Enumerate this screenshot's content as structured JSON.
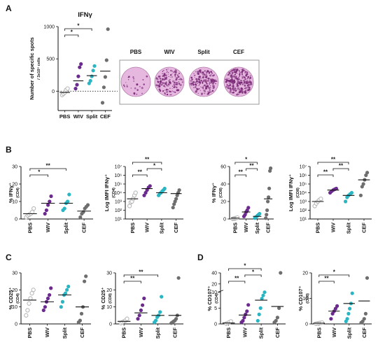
{
  "colors": {
    "PBS": "#b8b8b8",
    "WIV": "#6b2a8e",
    "Split": "#2ab5c3",
    "CEF": "#6e6e6e",
    "well_bg": "#e6b8e0",
    "well_spot": "#7a2a76"
  },
  "panel_labels": [
    "A",
    "B",
    "C",
    "D"
  ],
  "wells": [
    "PBS",
    "WIV",
    "Split",
    "CEF"
  ],
  "chart_data": [
    {
      "id": "A1",
      "panel": "A",
      "type": "scatter",
      "title": "IFNγ",
      "ylabel_lines": [
        "Number of specific spots",
        "/ 3x10⁵ cells"
      ],
      "categories": [
        "PBS",
        "WIV",
        "Split",
        "CEF"
      ],
      "yscale": "linear",
      "ylim": [
        -300,
        1000
      ],
      "yticks": [
        0,
        500,
        1000
      ],
      "yticklabels": [
        "0",
        "500",
        "1000"
      ],
      "zero_dotted": true,
      "points": [
        [
          -60,
          -40,
          -20,
          20,
          40
        ],
        [
          40,
          100,
          230,
          370,
          420
        ],
        [
          120,
          160,
          230,
          320,
          390
        ],
        [
          -180,
          60,
          220,
          480,
          960
        ]
      ],
      "medians": [
        -20,
        160,
        240,
        310
      ],
      "sig": [
        {
          "a": 0,
          "b": 1,
          "label": "*"
        },
        {
          "a": 0,
          "b": 2,
          "label": "*"
        }
      ]
    },
    {
      "id": "B1",
      "panel": "B",
      "type": "scatter",
      "title": "",
      "ylabel_lines": [
        "% IFNγ⁺",
        "(CD4)"
      ],
      "categories": [
        "PBS",
        "WIV",
        "Split",
        "CEF"
      ],
      "yscale": "linear",
      "ylim": [
        0,
        30
      ],
      "yticks": [
        0,
        10,
        20,
        30
      ],
      "yticklabels": [
        "0",
        "10",
        "20",
        "30"
      ],
      "points": [
        [
          1,
          2,
          2.5,
          3,
          4,
          6
        ],
        [
          3,
          5,
          8,
          10,
          13
        ],
        [
          5,
          6,
          9,
          10,
          14
        ],
        [
          1,
          3,
          4,
          6,
          7,
          8
        ]
      ],
      "medians": [
        3,
        9,
        9,
        4.5
      ],
      "sig": [
        {
          "a": 0,
          "b": 1,
          "label": "*"
        },
        {
          "a": 0,
          "b": 2,
          "label": "**"
        }
      ]
    },
    {
      "id": "B2",
      "panel": "B",
      "type": "scatter",
      "title": "",
      "ylabel_lines": [
        "Log IMFI IFNγ⁺",
        "(CD4)"
      ],
      "categories": [
        "PBS",
        "WIV",
        "Split",
        "CEF"
      ],
      "yscale": "log",
      "ylim": [
        10,
        10000000
      ],
      "yticks": [
        10,
        100,
        1000,
        10000,
        100000,
        1000000,
        10000000
      ],
      "yticklabels": [
        "10¹",
        "10²",
        "10³",
        "10⁴",
        "10⁵",
        "10⁶",
        "10⁷"
      ],
      "points": [
        [
          300,
          800,
          1000,
          2000,
          5000,
          10000
        ],
        [
          5000,
          10000,
          20000,
          40000,
          60000
        ],
        [
          5000,
          8000,
          10000,
          15000,
          20000,
          30000
        ],
        [
          200,
          500,
          1000,
          2000,
          5000,
          10000,
          20000
        ]
      ],
      "medians": [
        2000,
        30000,
        10000,
        8000
      ],
      "sig": [
        {
          "a": 0,
          "b": 1,
          "label": "**"
        },
        {
          "a": 1,
          "b": 2,
          "label": "*"
        },
        {
          "a": 0,
          "b": 2,
          "label": "**"
        }
      ]
    },
    {
      "id": "B3",
      "panel": "B",
      "type": "scatter",
      "title": "",
      "ylabel_lines": [
        "% IFNγ⁺",
        "(CD8)"
      ],
      "categories": [
        "PBS",
        "WIV",
        "Split",
        "CEF"
      ],
      "yscale": "linear",
      "ylim": [
        0,
        60
      ],
      "yticks": [
        0,
        20,
        40,
        60
      ],
      "yticklabels": [
        "0",
        "20",
        "40",
        "60"
      ],
      "points": [
        [
          0.2,
          0.5,
          0.8,
          1,
          1.2,
          1.5
        ],
        [
          3,
          5,
          8,
          10,
          13
        ],
        [
          1,
          2,
          3,
          4,
          5,
          6
        ],
        [
          1,
          5,
          10,
          20,
          25,
          35,
          55,
          58
        ]
      ],
      "medians": [
        1,
        8,
        3,
        23
      ],
      "sig": [
        {
          "a": 0,
          "b": 1,
          "label": "**"
        },
        {
          "a": 1,
          "b": 2,
          "label": "**"
        },
        {
          "a": 0,
          "b": 2,
          "label": "*"
        }
      ]
    },
    {
      "id": "B4",
      "panel": "B",
      "type": "scatter",
      "title": "",
      "ylabel_lines": [
        "Log IMFI IFNγ⁺",
        "(CD8)"
      ],
      "categories": [
        "PBS",
        "WIV",
        "Split",
        "CEF"
      ],
      "yscale": "log",
      "ylim": [
        10,
        10000000
      ],
      "yticks": [
        10,
        100,
        1000,
        10000,
        100000,
        1000000,
        10000000
      ],
      "yticklabels": [
        "10¹",
        "10²",
        "10³",
        "10⁴",
        "10⁵",
        "10⁶",
        "10⁷"
      ],
      "points": [
        [
          300,
          600,
          1000,
          1500,
          2000
        ],
        [
          10000,
          15000,
          20000,
          25000,
          30000
        ],
        [
          1000,
          3000,
          5000,
          7000,
          10000
        ],
        [
          5000,
          50000,
          100000,
          300000,
          1000000,
          2000000
        ]
      ],
      "medians": [
        1000,
        20000,
        5000,
        300000
      ],
      "sig": [
        {
          "a": 0,
          "b": 1,
          "label": "**"
        },
        {
          "a": 1,
          "b": 2,
          "label": "**"
        },
        {
          "a": 0,
          "b": 2,
          "label": "**"
        }
      ]
    },
    {
      "id": "C1",
      "panel": "C",
      "type": "scatter",
      "title": "",
      "ylabel_lines": [
        "% CD25⁺",
        "(CD4)"
      ],
      "categories": [
        "PBS",
        "WIV",
        "Split",
        "CEF"
      ],
      "yscale": "linear",
      "ylim": [
        0,
        30
      ],
      "yticks": [
        0,
        10,
        20,
        30
      ],
      "yticklabels": [
        "0",
        "10",
        "20",
        "30"
      ],
      "points": [
        [
          5,
          8,
          12,
          15,
          18,
          20
        ],
        [
          8,
          10,
          13,
          15,
          17,
          21
        ],
        [
          10,
          13,
          17,
          18,
          20,
          22
        ],
        [
          1,
          2,
          6,
          10,
          25,
          28
        ]
      ],
      "medians": [
        14,
        13,
        17,
        10
      ],
      "sig": []
    },
    {
      "id": "C2",
      "panel": "C",
      "type": "scatter",
      "title": "",
      "ylabel_lines": [
        "% CD25⁺",
        "(CD8)"
      ],
      "categories": [
        "PBS",
        "WIV",
        "Split",
        "CEF"
      ],
      "yscale": "linear",
      "ylim": [
        0,
        30
      ],
      "yticks": [
        0,
        10,
        20,
        30
      ],
      "yticklabels": [
        "0",
        "10",
        "20",
        "30"
      ],
      "points": [
        [
          0.5,
          1,
          1.5,
          2,
          3
        ],
        [
          3,
          5,
          8,
          11,
          15
        ],
        [
          1,
          2,
          4,
          5,
          7,
          16
        ],
        [
          0.5,
          1,
          1.5,
          2,
          3,
          5,
          27
        ]
      ],
      "medians": [
        1.5,
        6.5,
        5,
        5
      ],
      "sig": [
        {
          "a": 0,
          "b": 1,
          "label": "**"
        },
        {
          "a": 0,
          "b": 2,
          "label": "**"
        }
      ]
    },
    {
      "id": "D1",
      "panel": "D",
      "type": "scatter",
      "title": "",
      "ylabel_lines": [
        "% CD107⁺",
        "(CD4)"
      ],
      "categories": [
        "PBS",
        "WIV",
        "Split",
        "CEF"
      ],
      "yscale": "broken",
      "ylim": [
        0,
        40
      ],
      "yticks": [
        0,
        5,
        10,
        20,
        40
      ],
      "yticklabels": [
        "0",
        "5",
        "10",
        "20",
        "40"
      ],
      "break_at": 10,
      "points": [
        [
          0.1,
          0.3,
          0.5,
          0.8
        ],
        [
          0.5,
          1,
          2,
          3,
          4,
          6
        ],
        [
          1,
          3,
          5,
          8,
          9,
          10
        ],
        [
          0.5,
          1,
          2,
          5,
          40
        ]
      ],
      "medians": [
        0.3,
        2.8,
        7.5,
        5.5
      ],
      "sig": [
        {
          "a": 0,
          "b": 1,
          "label": "**"
        },
        {
          "a": 1,
          "b": 2,
          "label": "*"
        },
        {
          "a": 0,
          "b": 2,
          "label": "*"
        }
      ]
    },
    {
      "id": "D2",
      "panel": "D",
      "type": "scatter",
      "title": "",
      "ylabel_lines": [
        "% CD107⁺",
        "(CD8)"
      ],
      "categories": [
        "PBS",
        "WIV",
        "Split",
        "CEF"
      ],
      "yscale": "linear",
      "ylim": [
        0,
        20
      ],
      "yticks": [
        0,
        10,
        20
      ],
      "yticklabels": [
        "0",
        "10",
        "20"
      ],
      "points": [
        [
          0.1,
          0.2,
          0.3,
          0.4,
          0.5
        ],
        [
          2,
          4,
          5,
          6,
          7
        ],
        [
          1,
          2,
          4,
          6,
          8,
          12
        ],
        [
          0.5,
          1,
          2,
          4,
          18
        ]
      ],
      "medians": [
        0.3,
        5,
        8,
        9
      ],
      "sig": [
        {
          "a": 0,
          "b": 1,
          "label": "**"
        },
        {
          "a": 0,
          "b": 2,
          "label": "*"
        }
      ]
    }
  ]
}
